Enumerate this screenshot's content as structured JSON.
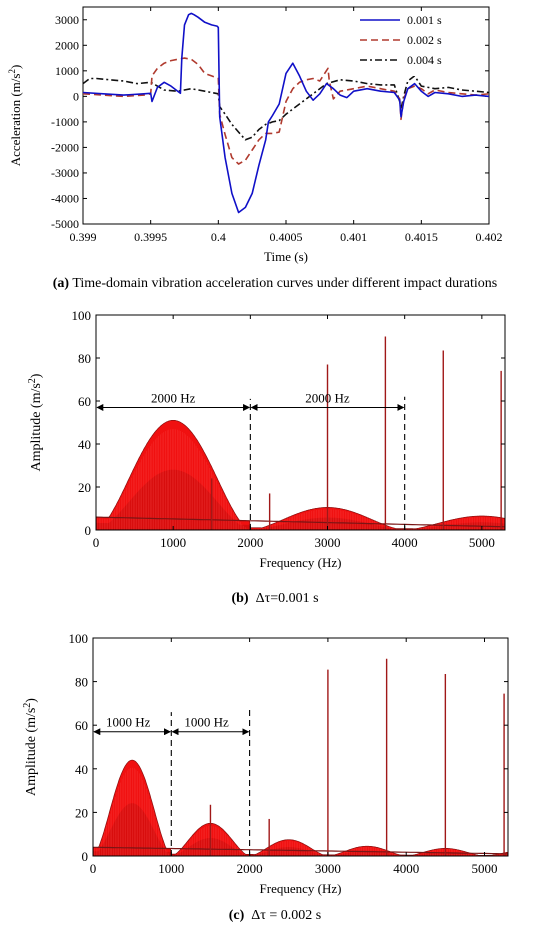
{
  "chart_data": [
    {
      "type": "line",
      "caption_letter": "(a)",
      "caption_text": "Time-domain vibration acceleration curves under different impact durations",
      "xlabel": "Time (s)",
      "ylabel": "Acceleration (m/s",
      "ylabel_sup": "2",
      "ylabel_end": ")",
      "xlim": [
        0.399,
        0.402
      ],
      "ylim": [
        -5000,
        3500
      ],
      "xticks": [
        0.399,
        0.3995,
        0.4,
        0.4005,
        0.401,
        0.4015,
        0.402
      ],
      "xtick_labels": [
        "0.399",
        "0.3995",
        "0.4",
        "0.4005",
        "0.401",
        "0.4015",
        "0.402"
      ],
      "yticks": [
        -5000,
        -4000,
        -3000,
        -2000,
        -1000,
        0,
        1000,
        2000,
        3000
      ],
      "ytick_labels": [
        "-5000",
        "-4000",
        "-3000",
        "-2000",
        "-1000",
        "0",
        "1000",
        "2000",
        "3000"
      ],
      "legend_position": "top-right",
      "series": [
        {
          "name": "0.001 s",
          "color": "#1010c8",
          "style": "solid",
          "x": [
            0.399,
            0.39915,
            0.3993,
            0.39945,
            0.3995,
            0.39951,
            0.39955,
            0.3996,
            0.39965,
            0.3997,
            0.39972,
            0.39973,
            0.39975,
            0.39978,
            0.3998,
            0.39982,
            0.39985,
            0.3999,
            0.39995,
            0.39999,
            0.4,
            0.40001,
            0.40005,
            0.4001,
            0.40015,
            0.4002,
            0.40025,
            0.4003,
            0.40035,
            0.40037,
            0.4004,
            0.40045,
            0.4005,
            0.40055,
            0.4006,
            0.40065,
            0.4007,
            0.40075,
            0.4008,
            0.40085,
            0.4009,
            0.40095,
            0.401,
            0.4011,
            0.4012,
            0.4013,
            0.40134,
            0.40135,
            0.40137,
            0.4014,
            0.40145,
            0.4015,
            0.40155,
            0.4016,
            0.4017,
            0.4018,
            0.4019,
            0.402
          ],
          "y": [
            150,
            100,
            50,
            100,
            120,
            -200,
            350,
            550,
            400,
            200,
            120,
            1500,
            2800,
            3200,
            3250,
            3200,
            3100,
            2900,
            2800,
            2750,
            2700,
            -800,
            -2400,
            -3800,
            -4550,
            -4350,
            -3800,
            -2700,
            -1700,
            -1000,
            -750,
            -300,
            900,
            1300,
            800,
            200,
            -150,
            100,
            500,
            300,
            50,
            -50,
            200,
            300,
            200,
            150,
            -150,
            -800,
            -200,
            300,
            500,
            200,
            0,
            150,
            100,
            0,
            50,
            0
          ]
        },
        {
          "name": "0.002 s",
          "color": "#b03a2e",
          "style": "dashed",
          "x": [
            0.399,
            0.39915,
            0.3993,
            0.39945,
            0.3995,
            0.39951,
            0.39955,
            0.3996,
            0.39965,
            0.3997,
            0.39975,
            0.3998,
            0.39985,
            0.3999,
            0.39995,
            0.4,
            0.40001,
            0.40005,
            0.4001,
            0.40015,
            0.4002,
            0.40025,
            0.4003,
            0.40035,
            0.4004,
            0.40045,
            0.4005,
            0.40055,
            0.4006,
            0.40065,
            0.4007,
            0.40075,
            0.40081,
            0.40082,
            0.40085,
            0.4009,
            0.40095,
            0.401,
            0.4011,
            0.4012,
            0.4013,
            0.40134,
            0.40135,
            0.40137,
            0.4014,
            0.40145,
            0.4015,
            0.40155,
            0.4016,
            0.4017,
            0.4018,
            0.4019,
            0.402
          ],
          "y": [
            100,
            50,
            0,
            50,
            100,
            800,
            1100,
            1300,
            1400,
            1450,
            1500,
            1450,
            1250,
            900,
            800,
            700,
            -700,
            -1500,
            -2400,
            -2650,
            -2500,
            -2100,
            -1700,
            -1450,
            -1450,
            -1400,
            -200,
            300,
            550,
            650,
            700,
            600,
            1100,
            600,
            -100,
            200,
            250,
            300,
            400,
            300,
            200,
            -100,
            -900,
            -100,
            300,
            400,
            300,
            100,
            250,
            150,
            100,
            50,
            100
          ]
        },
        {
          "name": "0.004 s",
          "color": "#111111",
          "style": "dashdot",
          "x": [
            0.399,
            0.39905,
            0.3991,
            0.3992,
            0.3993,
            0.3994,
            0.3995,
            0.3996,
            0.3997,
            0.3998,
            0.3999,
            0.4,
            0.40001,
            0.40005,
            0.4001,
            0.40015,
            0.4002,
            0.40025,
            0.4003,
            0.40035,
            0.4004,
            0.40045,
            0.4005,
            0.4006,
            0.4007,
            0.4008,
            0.4009,
            0.401,
            0.4011,
            0.4012,
            0.4013,
            0.40134,
            0.40135,
            0.40137,
            0.4014,
            0.40145,
            0.4015,
            0.4016,
            0.4017,
            0.4018,
            0.4019,
            0.402
          ],
          "y": [
            500,
            700,
            700,
            650,
            600,
            500,
            550,
            250,
            200,
            300,
            200,
            100,
            -400,
            -700,
            -1100,
            -1400,
            -1700,
            -1600,
            -1300,
            -1100,
            -1000,
            -950,
            -700,
            -300,
            100,
            500,
            650,
            600,
            500,
            450,
            450,
            -200,
            -500,
            0,
            600,
            800,
            400,
            300,
            350,
            250,
            200,
            150
          ]
        }
      ]
    },
    {
      "type": "bar",
      "caption_letter": "(b)",
      "caption_text": "Δτ=0.001 s",
      "xlabel": "Frequency (Hz)",
      "ylabel": "Amplitude (m/s",
      "ylabel_sup": "2",
      "ylabel_end": ")",
      "xlim": [
        0,
        5300
      ],
      "ylim": [
        0,
        100
      ],
      "xticks": [
        0,
        1000,
        2000,
        3000,
        4000,
        5000
      ],
      "xtick_labels": [
        "0",
        "1000",
        "2000",
        "3000",
        "4000",
        "5000"
      ],
      "yticks": [
        0,
        20,
        40,
        60,
        80,
        100
      ],
      "ytick_labels": [
        "0",
        "20",
        "40",
        "60",
        "80",
        "100"
      ],
      "grid": false,
      "envelope": {
        "zero_spacing_hz": 2000,
        "lobe_peaks": [
          51,
          10.5,
          6.5
        ],
        "dc_value": 6,
        "baseline_start": 6,
        "baseline_end": 1.5
      },
      "spikes": [
        {
          "x": 1500,
          "y": 24
        },
        {
          "x": 2250,
          "y": 17
        },
        {
          "x": 3000,
          "y": 77
        },
        {
          "x": 3750,
          "y": 90
        },
        {
          "x": 4500,
          "y": 83.5
        },
        {
          "x": 5250,
          "y": 74
        }
      ],
      "annotations": [
        {
          "label": "2000 Hz",
          "from": 0,
          "to": 2000,
          "y": 57,
          "label_x": 1000
        },
        {
          "label": "2000 Hz",
          "from": 2000,
          "to": 4000,
          "y": 57,
          "label_x": 3000
        }
      ],
      "dashed_lines": [
        {
          "x": 2000,
          "top": 61
        },
        {
          "x": 4000,
          "top": 62
        }
      ]
    },
    {
      "type": "bar",
      "caption_letter": "(c)",
      "caption_text": "Δτ = 0.002 s",
      "xlabel": "Frequency (Hz)",
      "ylabel": "Amplitude (m/s",
      "ylabel_sup": "2",
      "ylabel_end": ")",
      "xlim": [
        0,
        5300
      ],
      "ylim": [
        0,
        100
      ],
      "xticks": [
        0,
        1000,
        2000,
        3000,
        4000,
        5000
      ],
      "xtick_labels": [
        "0",
        "1000",
        "2000",
        "3000",
        "4000",
        "5000"
      ],
      "yticks": [
        0,
        20,
        40,
        60,
        80,
        100
      ],
      "ytick_labels": [
        "0",
        "20",
        "40",
        "60",
        "80",
        "100"
      ],
      "grid": false,
      "envelope": {
        "zero_spacing_hz": 1000,
        "lobe_peaks": [
          44,
          15,
          7.5,
          4.5,
          3.5,
          2.5
        ],
        "dc_value": 4,
        "baseline_start": 4,
        "baseline_end": 1
      },
      "spikes": [
        {
          "x": 1500,
          "y": 23.5
        },
        {
          "x": 2250,
          "y": 17
        },
        {
          "x": 3000,
          "y": 85.5
        },
        {
          "x": 3750,
          "y": 90.5
        },
        {
          "x": 4500,
          "y": 83.5
        },
        {
          "x": 5250,
          "y": 74.5
        }
      ],
      "annotations": [
        {
          "label": "1000 Hz",
          "from": 0,
          "to": 1000,
          "y": 57,
          "label_x": 450
        },
        {
          "label": "1000 Hz",
          "from": 1000,
          "to": 2000,
          "y": 57,
          "label_x": 1450
        }
      ],
      "dashed_lines": [
        {
          "x": 1000,
          "top": 66
        },
        {
          "x": 2000,
          "top": 67
        }
      ]
    }
  ]
}
